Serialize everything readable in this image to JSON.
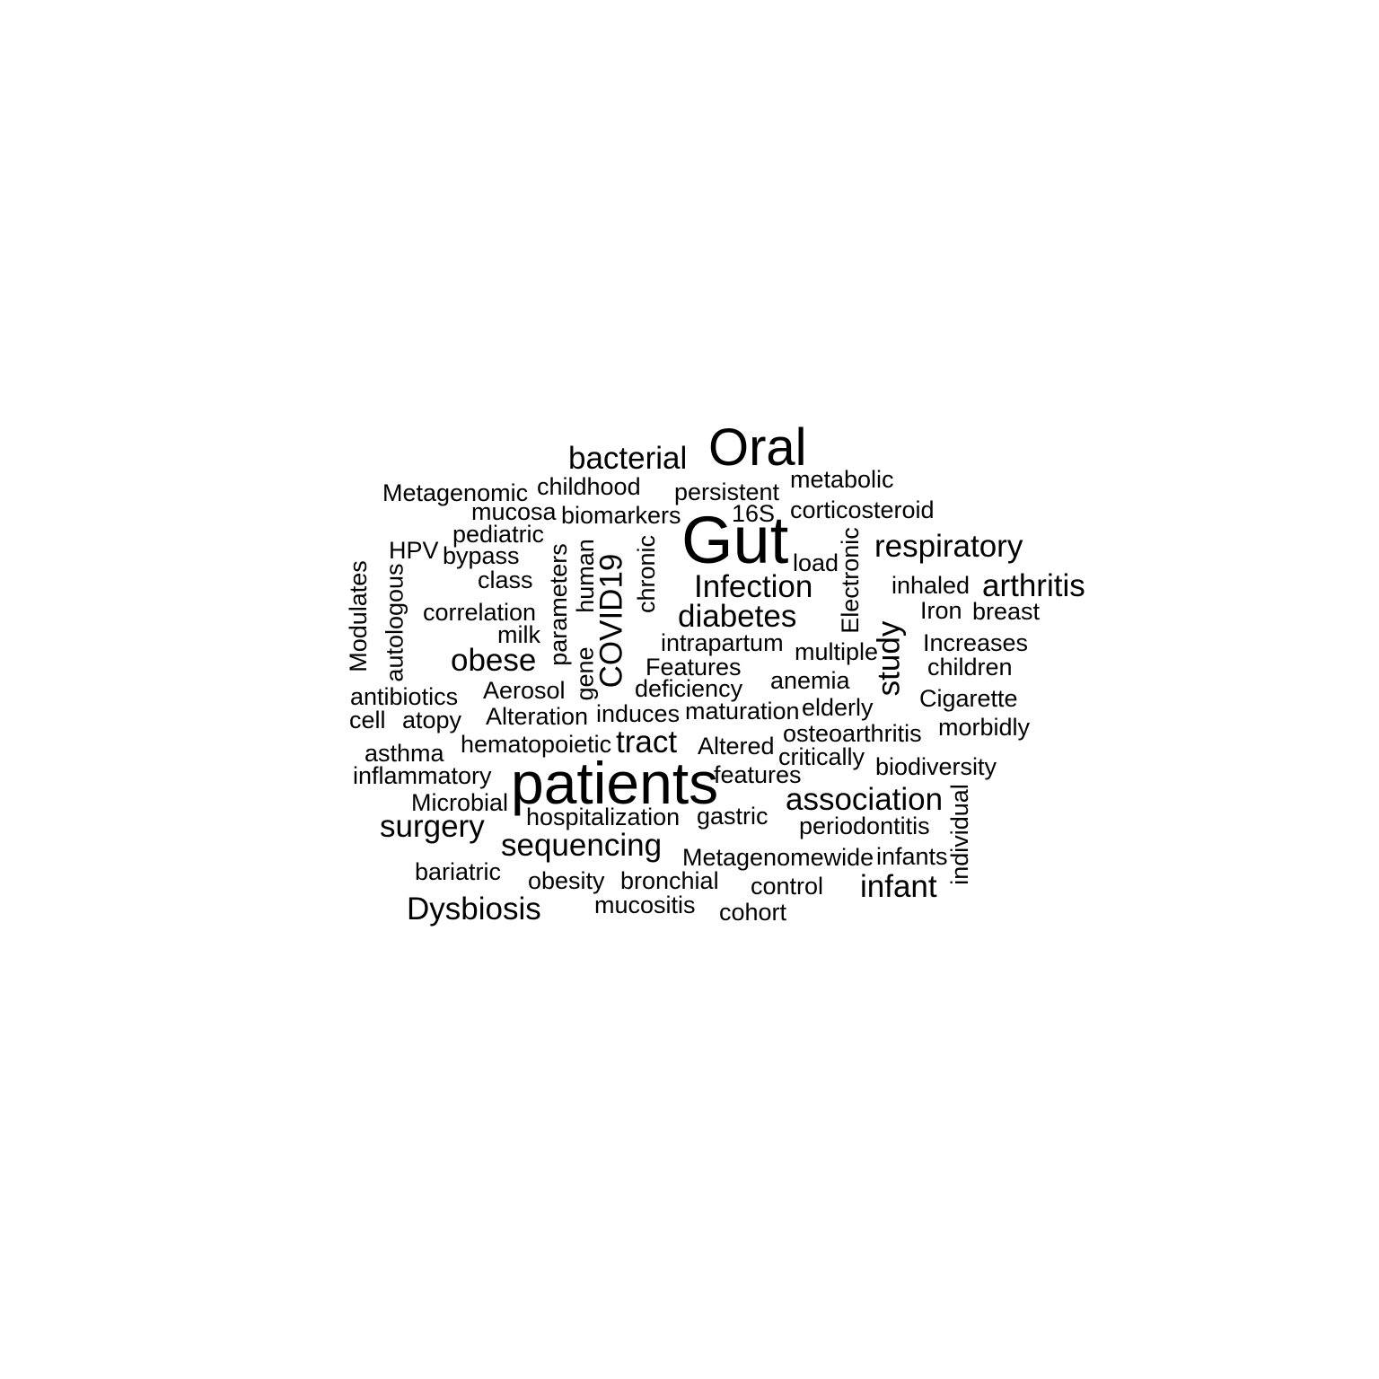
{
  "words": [
    "Oral",
    "bacterial",
    "metabolic",
    "childhood",
    "Metagenomic",
    "persistent",
    "corticosteroid",
    "mucosa",
    "biomarkers",
    "16S",
    "Gut",
    "respiratory",
    "pediatric",
    "HPV",
    "bypass",
    "load",
    "class",
    "human",
    "parameters",
    "chronic",
    "COVID19",
    "Electronic",
    "Modulates",
    "autologous",
    "Infection",
    "inhaled",
    "arthritis",
    "correlation",
    "diabetes",
    "Iron",
    "breast",
    "milk",
    "study",
    "intrapartum",
    "multiple",
    "Increases",
    "obese",
    "Features",
    "gene",
    "children",
    "anemia",
    "antibiotics",
    "Aerosol",
    "deficiency",
    "Cigarette",
    "elderly",
    "cell",
    "atopy",
    "Alteration",
    "induces",
    "maturation",
    "morbidly",
    "osteoarthritis",
    "hematopoietic",
    "tract",
    "Altered",
    "asthma",
    "critically",
    "biodiversity",
    "inflammatory",
    "patients",
    "features",
    "Microbial",
    "association",
    "individual",
    "hospitalization",
    "gastric",
    "surgery",
    "periodontitis",
    "sequencing",
    "Metagenomewide",
    "infants",
    "bariatric",
    "obesity",
    "bronchial",
    "control",
    "infant",
    "Dysbiosis",
    "mucositis",
    "cohort"
  ]
}
